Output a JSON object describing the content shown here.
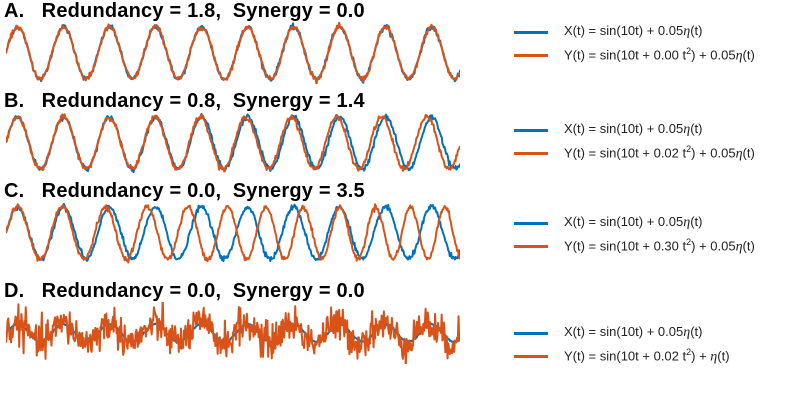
{
  "colors": {
    "x_series": "#0072BD",
    "y_series": "#D95319"
  },
  "chart_data": [
    {
      "type": "line",
      "title": "A.   Redundancy = 1.8,  Synergy = 0.0",
      "x_range": [
        0,
        6.2
      ],
      "series": [
        {
          "name": "X(t) = sin(10t) + 0.05η(t)",
          "formula": {
            "chirp": 0.0,
            "noise": 0.05
          },
          "color": "#0072BD"
        },
        {
          "name": "Y(t) = sin(10t + 0.00 t²) + 0.05η(t)",
          "formula": {
            "chirp": 0.0,
            "noise": 0.05
          },
          "color": "#D95319"
        }
      ],
      "legend": [
        {
          "pre": "X(t) = sin(10t) + 0.05",
          "eta": "η",
          "post": "(t)",
          "sup": ""
        },
        {
          "pre": "Y(t) = sin(10t + 0.00 t",
          "sup": "2",
          "mid": ") + 0.05",
          "eta": "η",
          "post": "(t)"
        }
      ]
    },
    {
      "type": "line",
      "title": "B.   Redundancy = 0.8,  Synergy = 1.4",
      "x_range": [
        0,
        6.2
      ],
      "series": [
        {
          "name": "X(t) = sin(10t) + 0.05η(t)",
          "formula": {
            "chirp": 0.0,
            "noise": 0.05
          },
          "color": "#0072BD"
        },
        {
          "name": "Y(t) = sin(10t + 0.02 t²) + 0.05η(t)",
          "formula": {
            "chirp": 0.02,
            "noise": 0.05
          },
          "color": "#D95319"
        }
      ],
      "legend": [
        {
          "pre": "X(t) = sin(10t) + 0.05",
          "eta": "η",
          "post": "(t)",
          "sup": ""
        },
        {
          "pre": "Y(t) = sin(10t + 0.02 t",
          "sup": "2",
          "mid": ") + 0.05",
          "eta": "η",
          "post": "(t)"
        }
      ]
    },
    {
      "type": "line",
      "title": "C.   Redundancy = 0.0,  Synergy = 3.5",
      "x_range": [
        0,
        6.2
      ],
      "series": [
        {
          "name": "X(t) = sin(10t) + 0.05η(t)",
          "formula": {
            "chirp": 0.0,
            "noise": 0.05
          },
          "color": "#0072BD"
        },
        {
          "name": "Y(t) = sin(10t + 0.30 t²) + 0.05η(t)",
          "formula": {
            "chirp": 0.3,
            "noise": 0.05
          },
          "color": "#D95319"
        }
      ],
      "legend": [
        {
          "pre": "X(t) = sin(10t) + 0.05",
          "eta": "η",
          "post": "(t)",
          "sup": ""
        },
        {
          "pre": "Y(t) = sin(10t + 0.30 t",
          "sup": "2",
          "mid": ") + 0.05",
          "eta": "η",
          "post": "(t)"
        }
      ]
    },
    {
      "type": "line",
      "title": "D.   Redundancy = 0.0,  Synergy = 0.0",
      "x_range": [
        0,
        6.2
      ],
      "series": [
        {
          "name": "X(t) = sin(10t) + 0.05η(t)",
          "formula": {
            "chirp": 0.0,
            "noise": 0.05
          },
          "color": "#0072BD"
        },
        {
          "name": "Y(t) = sin(10t + 0.02 t²) + η(t)",
          "formula": {
            "chirp": 0.02,
            "noise": 1.0
          },
          "color": "#D95319"
        }
      ],
      "legend": [
        {
          "pre": "X(t) = sin(10t) + 0.05",
          "eta": "η",
          "post": "(t)",
          "sup": ""
        },
        {
          "pre": "Y(t) = sin(10t + 0.02 t",
          "sup": "2",
          "mid": ") + ",
          "eta": "η",
          "post": "(t)"
        }
      ]
    }
  ]
}
